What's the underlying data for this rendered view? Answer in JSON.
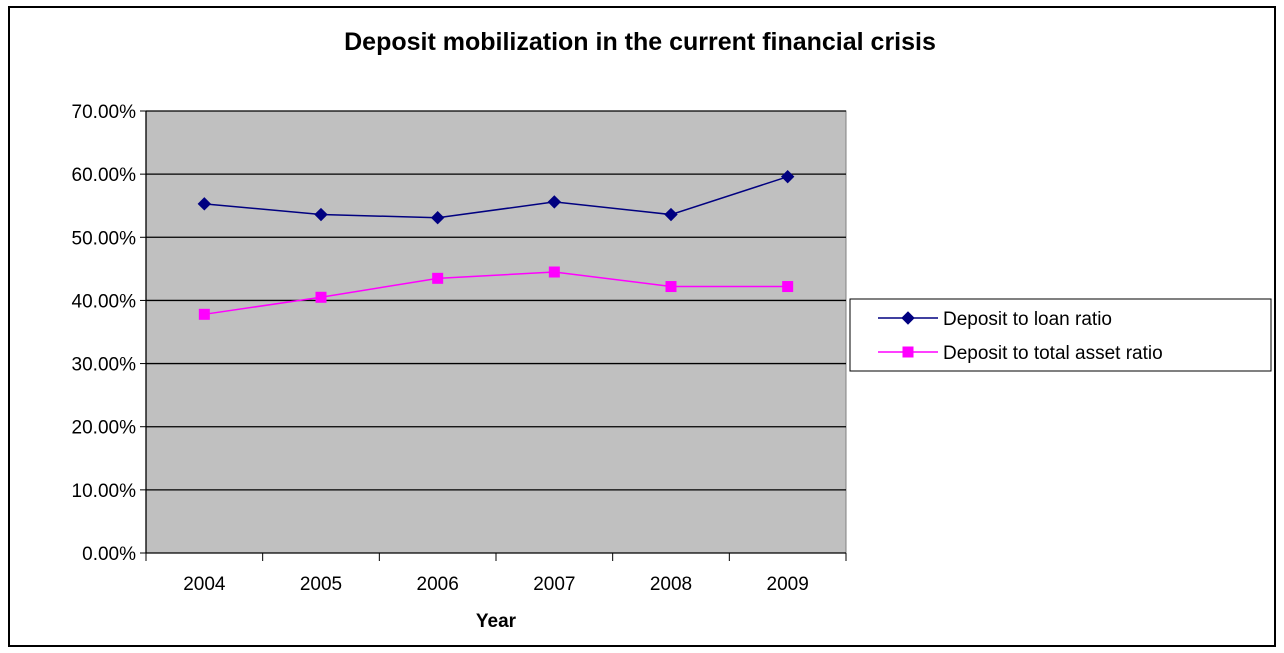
{
  "chart_data": {
    "type": "line",
    "title": "Deposit mobilization in the current financial crisis",
    "xlabel": "Year",
    "ylabel": "",
    "categories": [
      "2004",
      "2005",
      "2006",
      "2007",
      "2008",
      "2009"
    ],
    "ylim": [
      0,
      0.7
    ],
    "yticks": [
      0,
      0.1,
      0.2,
      0.3,
      0.4,
      0.5,
      0.6,
      0.7
    ],
    "ytick_labels": [
      "0.00%",
      "10.00%",
      "20.00%",
      "30.00%",
      "40.00%",
      "50.00%",
      "60.00%",
      "70.00%"
    ],
    "grid": true,
    "legend": "right",
    "plot_background": "#c0c0c0",
    "series": [
      {
        "name": "Deposit to loan ratio",
        "values": [
          0.553,
          0.536,
          0.531,
          0.556,
          0.536,
          0.596
        ],
        "color": "#000080",
        "marker": "diamond"
      },
      {
        "name": "Deposit to total asset ratio",
        "values": [
          0.378,
          0.405,
          0.435,
          0.445,
          0.422,
          0.422
        ],
        "color": "#ff00ff",
        "marker": "square"
      }
    ]
  }
}
